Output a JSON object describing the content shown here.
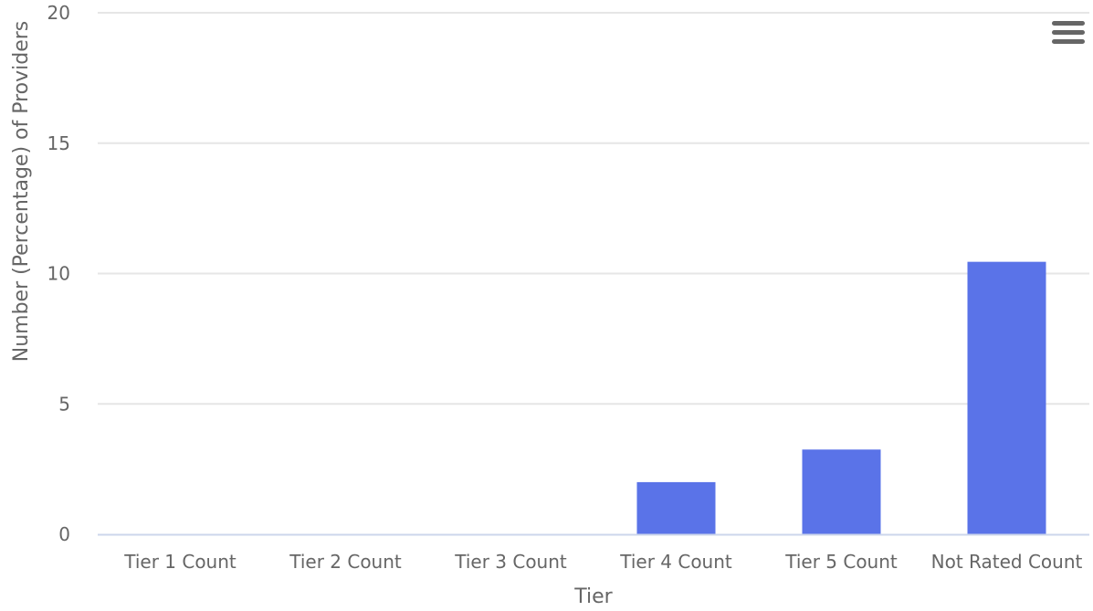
{
  "chart_data": {
    "type": "bar",
    "title": "",
    "xlabel": "Tier",
    "ylabel": "Number (Percentage) of Providers",
    "categories": [
      "Tier 1 Count",
      "Tier 2 Count",
      "Tier 3 Count",
      "Tier 4 Count",
      "Tier 5 Count",
      "Not Rated Count"
    ],
    "values": [
      0,
      0,
      0,
      2,
      3.25,
      10.45
    ],
    "ylim": [
      0,
      20
    ],
    "yticks": [
      0,
      5,
      10,
      15,
      20
    ],
    "grid": true,
    "bar_color": "#5a73e8",
    "grid_color": "#e6e6e6",
    "axis_color": "#ccd6eb"
  },
  "menu": {
    "icon": "hamburger-menu-icon"
  }
}
